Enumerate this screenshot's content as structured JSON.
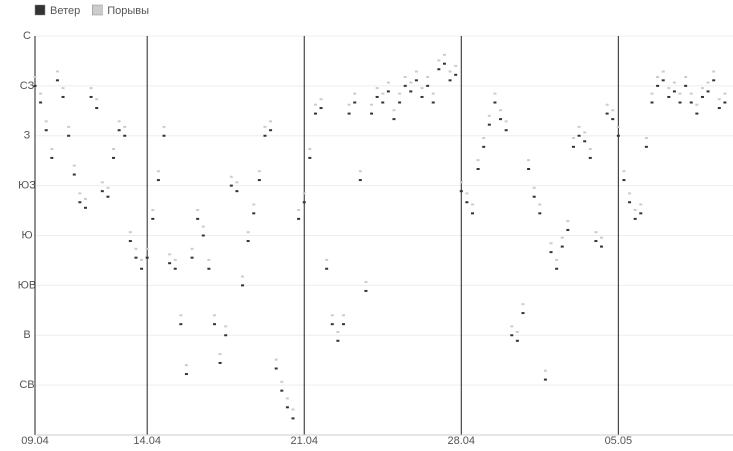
{
  "chart_data": {
    "type": "scatter",
    "x": [
      0,
      0.25,
      0.5,
      0.75,
      1,
      1.25,
      1.5,
      1.75,
      2,
      2.25,
      2.5,
      2.75,
      3,
      3.25,
      3.5,
      3.75,
      4,
      4.25,
      4.5,
      4.75,
      5,
      5.25,
      5.5,
      5.75,
      6,
      6.25,
      6.5,
      6.75,
      7,
      7.25,
      7.5,
      7.75,
      8,
      8.25,
      8.5,
      8.75,
      9,
      9.25,
      9.5,
      9.75,
      10,
      10.25,
      10.5,
      10.75,
      11,
      11.25,
      11.5,
      11.75,
      12,
      12.25,
      12.5,
      12.75,
      13,
      13.25,
      13.5,
      13.75,
      14,
      14.25,
      14.5,
      14.75,
      15,
      15.25,
      15.5,
      15.75,
      16,
      16.25,
      16.5,
      16.75,
      17,
      17.25,
      17.5,
      17.75,
      18,
      18.25,
      18.5,
      18.75,
      19,
      19.25,
      19.5,
      19.75,
      20,
      20.25,
      20.5,
      20.75,
      21,
      21.25,
      21.5,
      21.75,
      22,
      22.25,
      22.5,
      22.75,
      23,
      23.25,
      23.5,
      23.75,
      24,
      24.25,
      24.5,
      24.75,
      25,
      25.25,
      25.5,
      25.75,
      26,
      26.25,
      26.5,
      26.75,
      27,
      27.25,
      27.5,
      27.75,
      28,
      28.25,
      28.5,
      28.75,
      29,
      29.25,
      29.5,
      29.75,
      30,
      30.25,
      30.5,
      30.75
    ],
    "series": [
      {
        "name": "Порывы",
        "color": "#cccccc",
        "values": [
          323,
          308,
          283,
          258,
          328,
          313,
          278,
          243,
          218,
          213,
          313,
          303,
          228,
          223,
          258,
          283,
          278,
          183,
          168,
          158,
          168,
          203,
          238,
          278,
          163,
          158,
          108,
          63,
          168,
          203,
          188,
          158,
          108,
          73,
          98,
          233,
          228,
          143,
          183,
          208,
          238,
          278,
          283,
          68,
          48,
          33,
          23,
          203,
          218,
          258,
          298,
          303,
          158,
          108,
          93,
          108,
          298,
          308,
          238,
          138,
          298,
          313,
          308,
          318,
          293,
          308,
          323,
          318,
          328,
          313,
          323,
          308,
          338,
          343,
          328,
          333,
          228,
          218,
          208,
          248,
          268,
          288,
          308,
          293,
          283,
          98,
          93,
          118,
          248,
          223,
          208,
          58,
          173,
          158,
          178,
          193,
          268,
          278,
          273,
          258,
          183,
          178,
          298,
          293,
          278,
          238,
          218,
          203,
          208,
          268,
          308,
          323,
          328,
          313,
          318,
          308,
          323,
          308,
          298,
          313,
          318,
          328,
          303,
          308
        ]
      },
      {
        "name": "Ветер",
        "color": "#333333",
        "values": [
          315,
          300,
          275,
          250,
          320,
          305,
          270,
          235,
          210,
          205,
          305,
          295,
          220,
          215,
          250,
          275,
          270,
          175,
          160,
          150,
          160,
          195,
          230,
          270,
          155,
          150,
          100,
          55,
          160,
          195,
          180,
          150,
          100,
          65,
          90,
          225,
          220,
          135,
          175,
          200,
          230,
          270,
          275,
          60,
          40,
          25,
          15,
          195,
          210,
          250,
          290,
          295,
          150,
          100,
          85,
          100,
          290,
          300,
          230,
          130,
          290,
          305,
          300,
          310,
          285,
          300,
          315,
          310,
          320,
          305,
          315,
          300,
          330,
          335,
          320,
          325,
          220,
          210,
          200,
          240,
          260,
          280,
          300,
          285,
          275,
          90,
          85,
          110,
          240,
          215,
          200,
          50,
          165,
          150,
          170,
          185,
          260,
          270,
          265,
          250,
          175,
          170,
          290,
          285,
          270,
          230,
          210,
          195,
          200,
          260,
          300,
          315,
          320,
          305,
          310,
          300,
          315,
          300,
          290,
          305,
          310,
          320,
          295,
          300
        ]
      }
    ],
    "xlim": [
      0,
      31.2
    ],
    "xticks": [
      {
        "value": 0,
        "label": "09.04"
      },
      {
        "value": 5,
        "label": "14.04"
      },
      {
        "value": 12,
        "label": "21.04"
      },
      {
        "value": 19,
        "label": "28.04"
      },
      {
        "value": 26,
        "label": "05.05"
      }
    ],
    "ylim": [
      0,
      360
    ],
    "yticks": [
      {
        "value": 360,
        "label": "С"
      },
      {
        "value": 315,
        "label": "СЗ"
      },
      {
        "value": 270,
        "label": "З"
      },
      {
        "value": 225,
        "label": "ЮЗ"
      },
      {
        "value": 180,
        "label": "Ю"
      },
      {
        "value": 135,
        "label": "ЮВ"
      },
      {
        "value": 90,
        "label": "В"
      },
      {
        "value": 45,
        "label": "СВ"
      }
    ],
    "grid": true
  }
}
